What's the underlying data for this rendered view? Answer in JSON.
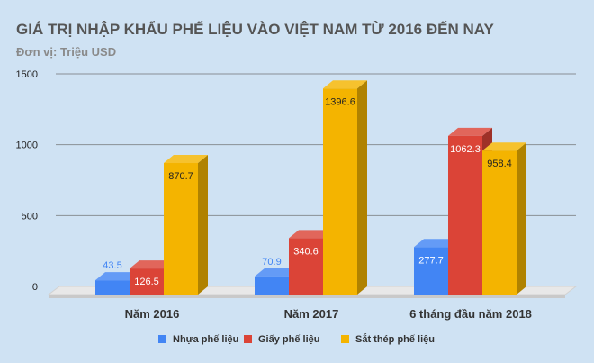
{
  "chart_data": {
    "type": "bar",
    "title": "GIÁ TRỊ NHẬP KHẨU PHẾ LIỆU VÀO VIỆT NAM TỪ 2016 ĐẾN NAY",
    "subtitle": "Đơn vị: Triệu USD",
    "categories": [
      "Năm 2016",
      "Năm 2017",
      "6 tháng đầu năm 2018"
    ],
    "series": [
      {
        "name": "Nhựa phế liệu",
        "values": [
          43.5,
          70.9,
          277.7
        ],
        "labels": [
          "43.5",
          "70.9",
          "277.7"
        ],
        "color": "#4285f4"
      },
      {
        "name": "Giấy phế liệu",
        "values": [
          126.5,
          340.6,
          1062.3
        ],
        "labels": [
          "126.5",
          "340.6",
          "1062.3"
        ],
        "color": "#db4437"
      },
      {
        "name": "Sắt thép phế liệu",
        "values": [
          870.7,
          1396.6,
          958.4
        ],
        "labels": [
          "870.7",
          "1396.6",
          "958.4"
        ],
        "color": "#f4b400"
      }
    ],
    "yticks": [
      "0",
      "500",
      "1000",
      "1500"
    ],
    "ylim": [
      0,
      1500
    ],
    "grid": true,
    "legend_position": "bottom",
    "style": "3d-columns"
  }
}
